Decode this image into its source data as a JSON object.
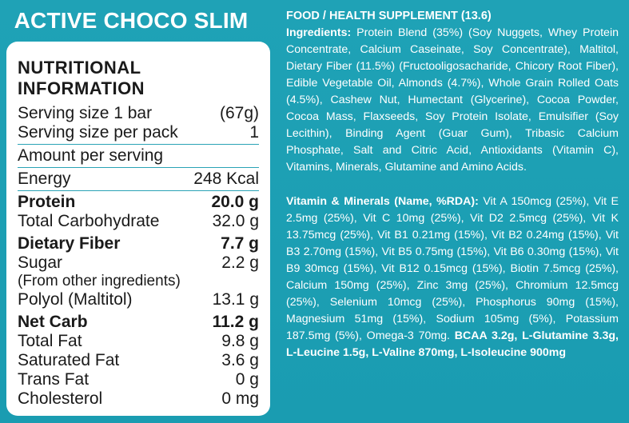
{
  "title": "ACTIVE CHOCO SLIM",
  "nutrition": {
    "heading": "NUTRITIONAL INFORMATION",
    "serving_size": {
      "label": "Serving size 1 bar",
      "value": "(67g)"
    },
    "serving_per_pack": {
      "label": "Serving size per pack",
      "value": "1"
    },
    "amount_per_serving": "Amount per serving",
    "rows": [
      {
        "label": "Energy",
        "value": "248 Kcal"
      },
      {
        "label": "Protein",
        "value": "20.0 g"
      },
      {
        "label": "Total Carbohydrate",
        "value": "32.0 g"
      },
      {
        "label": "Dietary Fiber",
        "value": "7.7 g"
      },
      {
        "label": "Sugar",
        "value": "2.2 g"
      },
      {
        "label": "(From other ingredients)",
        "value": ""
      },
      {
        "label": "Polyol (Maltitol)",
        "value": "13.1 g"
      },
      {
        "label": "Net Carb",
        "value": "11.2 g"
      },
      {
        "label": "Total Fat",
        "value": "9.8 g"
      },
      {
        "label": "Saturated Fat",
        "value": "3.6 g"
      },
      {
        "label": "Trans Fat",
        "value": "0 g"
      },
      {
        "label": "Cholesterol",
        "value": "0 mg"
      }
    ]
  },
  "supplement": {
    "heading": "FOOD / HEALTH SUPPLEMENT (13.6)",
    "ingredients_label": "Ingredients:",
    "ingredients_text": "Protein Blend (35%) (Soy Nuggets, Whey Protein Concentrate, Calcium Caseinate, Soy Concentrate), Maltitol, Dietary Fiber (11.5%) (Fructooligosacharide, Chicory Root Fiber), Edible Vegetable Oil, Almonds (4.7%), Whole Grain Rolled Oats (4.5%), Cashew Nut, Humectant (Glycerine), Cocoa Powder, Cocoa Mass, Flaxseeds, Soy Protein Isolate, Emulsifier (Soy Lecithin), Binding Agent (Guar Gum), Tribasic Calcium Phosphate, Salt and Citric Acid, Antioxidants (Vitamin C), Vitamins, Minerals, Glutamine and Amino Acids.",
    "vitamins_label": "Vitamin & Minerals (Name, %RDA):",
    "vitamins_text": "Vit A 150mcg (25%), Vit E 2.5mg (25%), Vit C 10mg (25%), Vit D2  2.5mcg (25%), Vit K 13.75mcg (25%), Vit B1 0.21mg (15%), Vit B2 0.24mg (15%), Vit B3 2.70mg (15%), Vit B5 0.75mg (15%), Vit B6 0.30mg (15%), Vit B9 30mcg (15%), Vit B12 0.15mcg (15%), Biotin 7.5mcg (25%), Calcium 150mg (25%), Zinc 3mg (25%), Chromium 12.5mcg (25%), Selenium 10mcg (25%), Phosphorus 90mg (15%), Magnesium 51mg (15%), Sodium 105mg (5%), Potassium 187.5mg (5%), Omega-3 70mg.",
    "amino_text": "BCAA 3.2g, L-Glutamine 3.3g, L-Leucine 1.5g, L-Valine 870mg, L-Isoleucine 900mg"
  }
}
